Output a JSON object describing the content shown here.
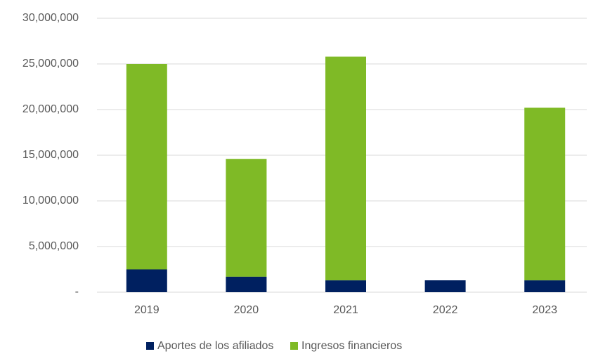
{
  "chart_data": {
    "type": "stacked_bar",
    "categories": [
      "2019",
      "2020",
      "2021",
      "2022",
      "2023"
    ],
    "series": [
      {
        "name": "Aportes de los afiliados",
        "color": "#002060",
        "values": [
          2500000,
          1700000,
          1300000,
          1300000,
          1300000
        ]
      },
      {
        "name": "Ingresos financieros",
        "color": "#7fba26",
        "values": [
          22500000,
          12900000,
          24500000,
          0,
          18900000
        ]
      }
    ],
    "ylim": [
      0,
      30000000
    ],
    "yticks": [
      {
        "value": 0,
        "label": "-"
      },
      {
        "value": 5000000,
        "label": "5,000,000"
      },
      {
        "value": 10000000,
        "label": "10,000,000"
      },
      {
        "value": 15000000,
        "label": "15,000,000"
      },
      {
        "value": 20000000,
        "label": "20,000,000"
      },
      {
        "value": 25000000,
        "label": "25,000,000"
      },
      {
        "value": 30000000,
        "label": "30,000,000"
      }
    ],
    "grid": true,
    "legend": "bottom"
  }
}
